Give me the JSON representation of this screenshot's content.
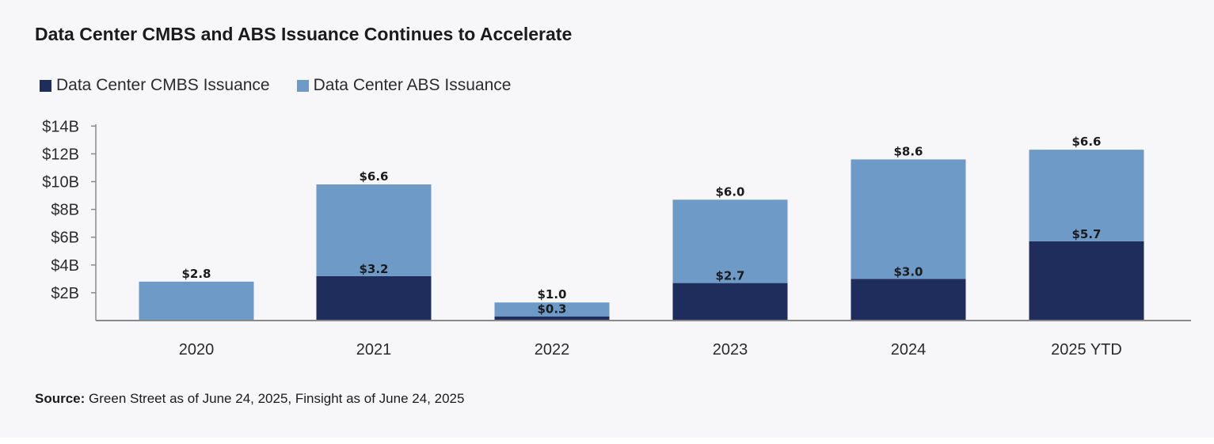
{
  "chart_data": {
    "type": "bar",
    "stacked": true,
    "title": "Data Center CMBS and ABS Issuance Continues to Accelerate",
    "categories": [
      "2020",
      "2021",
      "2022",
      "2023",
      "2024",
      "2025 YTD"
    ],
    "series": [
      {
        "name": "Data Center CMBS Issuance",
        "color": "#1f2d5c",
        "values": [
          0,
          3.2,
          0.3,
          2.7,
          3.0,
          5.7
        ],
        "labels": [
          "",
          "$3.2",
          "$0.3",
          "$2.7",
          "$3.0",
          "$5.7"
        ]
      },
      {
        "name": "Data Center ABS Issuance",
        "color": "#6e9ac8",
        "values": [
          2.8,
          6.6,
          1.0,
          6.0,
          8.6,
          6.6
        ],
        "labels": [
          "$2.8",
          "$6.6",
          "$1.0",
          "$6.0",
          "$8.6",
          "$6.6"
        ]
      }
    ],
    "ylim": [
      0,
      14
    ],
    "yticks": [
      2,
      4,
      6,
      8,
      10,
      12,
      14
    ],
    "ytick_labels": [
      "$2B",
      "$4B",
      "$6B",
      "$8B",
      "$10B",
      "$12B",
      "$14B"
    ],
    "xlabel": "",
    "ylabel": "",
    "legend_position": "top-left",
    "grid": false
  },
  "source": {
    "label": "Source:",
    "text": " Green Street as of June 24, 2025, Finsight as of June 24, 2025"
  }
}
